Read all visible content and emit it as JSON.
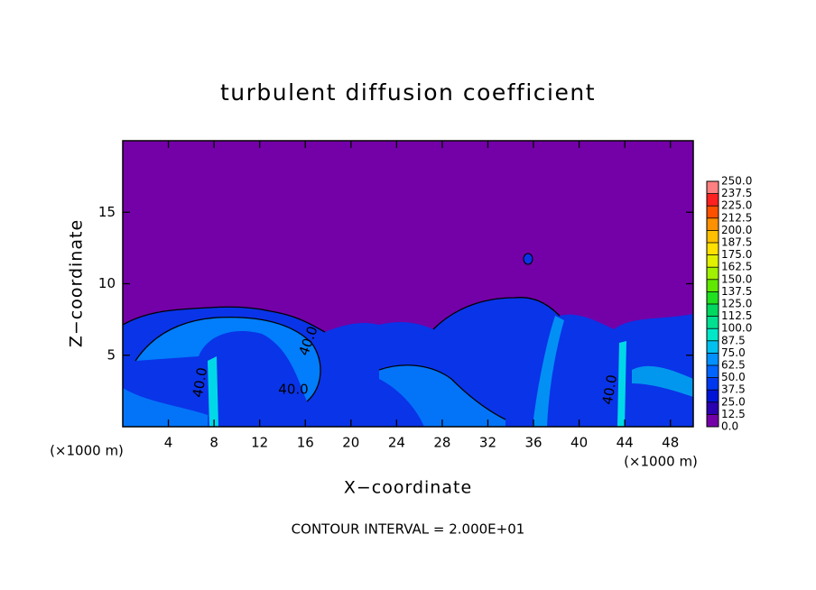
{
  "chart_data": {
    "type": "contour",
    "title": "turbulent diffusion coefficient",
    "x_label": "X−coordinate",
    "y_label": "Z−coordinate",
    "x_unit": "(×1000 m)",
    "y_unit": "(×1000 m)",
    "footer": "CONTOUR INTERVAL = 2.000E+01",
    "contour_labels": [
      "40.0",
      "40.0",
      "40.0",
      "40.0"
    ],
    "xlim": [
      0,
      50
    ],
    "ylim": [
      0,
      20
    ],
    "xticks": [
      4,
      8,
      12,
      16,
      20,
      24,
      28,
      32,
      36,
      40,
      44,
      48
    ],
    "yticks": [
      5,
      10,
      15
    ],
    "colorbar": {
      "levels": [
        {
          "value": 0,
          "label": "0.0"
        },
        {
          "value": 12.5,
          "label": "12.5"
        },
        {
          "value": 25,
          "label": "25.0"
        },
        {
          "value": 37.5,
          "label": "37.5"
        },
        {
          "value": 50,
          "label": "50.0"
        },
        {
          "value": 62.5,
          "label": "62.5"
        },
        {
          "value": 75,
          "label": "75.0"
        },
        {
          "value": 87.5,
          "label": "87.5"
        },
        {
          "value": 100,
          "label": "100.0"
        },
        {
          "value": 112.5,
          "label": "112.5"
        },
        {
          "value": 125,
          "label": "125.0"
        },
        {
          "value": 137.5,
          "label": "137.5"
        },
        {
          "value": 150,
          "label": "150.0"
        },
        {
          "value": 162.5,
          "label": "162.5"
        },
        {
          "value": 175,
          "label": "175.0"
        },
        {
          "value": 187.5,
          "label": "187.5"
        },
        {
          "value": 200,
          "label": "200.0"
        },
        {
          "value": 212.5,
          "label": "212.5"
        },
        {
          "value": 225,
          "label": "225.0"
        },
        {
          "value": 237.5,
          "label": "237.5"
        },
        {
          "value": 250,
          "label": "250.0"
        }
      ],
      "colors": [
        "#7400a8",
        "#2a00b0",
        "#0014d8",
        "#0038f0",
        "#0064ff",
        "#0090ff",
        "#00c0f0",
        "#00e8c8",
        "#00e090",
        "#00d860",
        "#20e020",
        "#60e800",
        "#a0f000",
        "#e0f000",
        "#ffe000",
        "#ffc000",
        "#ff9000",
        "#ff5000",
        "#ff2020",
        "#ff8080"
      ]
    }
  }
}
